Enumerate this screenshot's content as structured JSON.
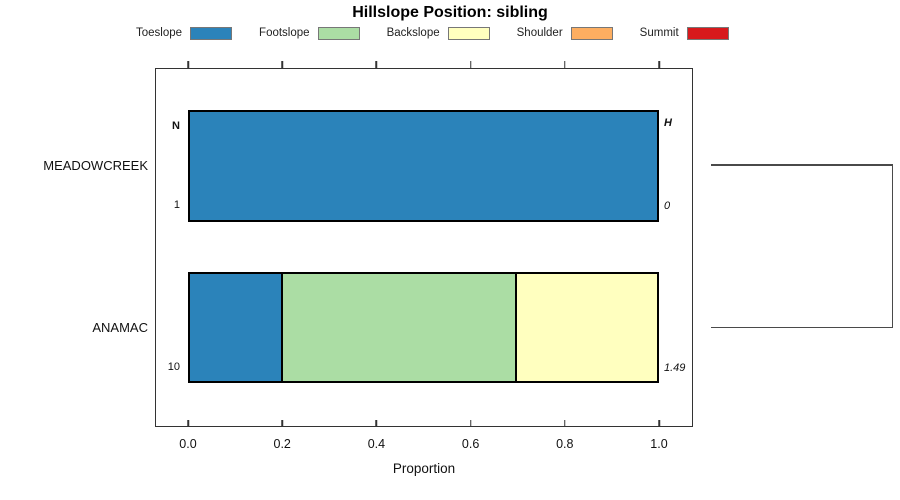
{
  "title": "Hillslope Position: sibling",
  "chart_data": {
    "type": "bar",
    "orientation": "horizontal",
    "stacked": true,
    "title": "Hillslope Position: sibling",
    "xlabel": "Proportion",
    "xlim": [
      0,
      1
    ],
    "x_ticks": [
      0,
      0.2,
      0.4,
      0.6,
      0.8,
      1
    ],
    "x_tick_labels": [
      "0.0",
      "0.2",
      "0.4",
      "0.6",
      "0.8",
      "1.0"
    ],
    "grid": false,
    "legend_position": "top",
    "legend": [
      {
        "label": "Toeslope",
        "color": "#2B83BA"
      },
      {
        "label": "Footslope",
        "color": "#ABDDA4"
      },
      {
        "label": "Backslope",
        "color": "#FFFFBF"
      },
      {
        "label": "Shoulder",
        "color": "#FDAE61"
      },
      {
        "label": "Summit",
        "color": "#D7191C"
      }
    ],
    "headers": {
      "n": "N",
      "h": "H"
    },
    "rows": [
      {
        "label": "MEADOWCREEK",
        "n": "1",
        "h": "0",
        "segments": [
          {
            "category": "Toeslope",
            "value": 1.0
          }
        ]
      },
      {
        "label": "ANAMAC",
        "n": "10",
        "h": "1.49",
        "segments": [
          {
            "category": "Toeslope",
            "value": 0.2
          },
          {
            "category": "Footslope",
            "value": 0.5
          },
          {
            "category": "Backslope",
            "value": 0.3
          }
        ]
      }
    ],
    "dendrogram": {
      "joins_rows": [
        "MEADOWCREEK",
        "ANAMAC"
      ],
      "side": "right"
    },
    "bar_border_color": "#000000",
    "axis_color": "#333333"
  }
}
